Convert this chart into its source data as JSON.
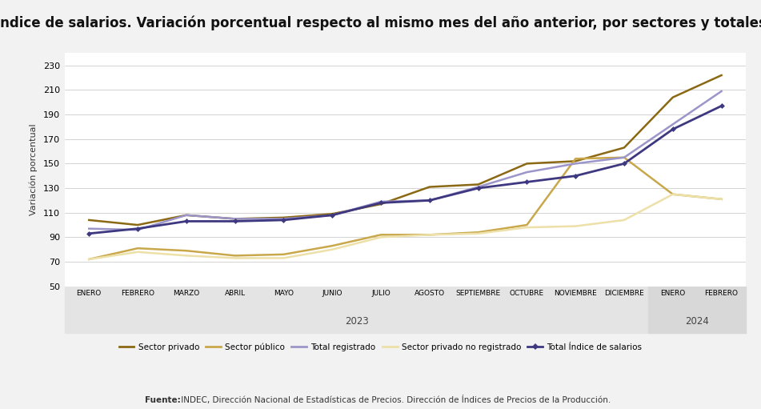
{
  "title": "Índice de salarios. Variación porcentual respecto al mismo mes del año anterior, por sectores y totales",
  "ylabel": "Variación porcentual",
  "xlabel_2023": "2023",
  "xlabel_2024": "2024",
  "source_bold": "Fuente:",
  "source_rest": " INDEC, Dirección Nacional de Estadísticas de Precios. Dirección de Índices de Precios de la Producción.",
  "months": [
    "ENERO",
    "FEBRERO",
    "MARZO",
    "ABRIL",
    "MAYO",
    "JUNIO",
    "JULIO",
    "AGOSTO",
    "SEPTIEMBRE",
    "OCTUBRE",
    "NOVIEMBRE",
    "DICIEMBRE",
    "ENERO",
    "FEBRERO"
  ],
  "sector_privado": [
    104,
    100,
    108,
    105,
    106,
    109,
    117,
    131,
    133,
    150,
    152,
    163,
    204,
    222
  ],
  "sector_publico": [
    72,
    81,
    79,
    75,
    76,
    83,
    92,
    92,
    94,
    100,
    154,
    155,
    125,
    121
  ],
  "total_registrado": [
    97,
    96,
    108,
    105,
    105,
    108,
    119,
    120,
    131,
    143,
    150,
    155,
    182,
    209
  ],
  "sector_priv_no_registrado": [
    72,
    78,
    75,
    73,
    73,
    80,
    90,
    92,
    93,
    98,
    99,
    104,
    125,
    121
  ],
  "total_indice_salarios": [
    93,
    97,
    103,
    103,
    104,
    108,
    118,
    120,
    130,
    135,
    140,
    150,
    178,
    197
  ],
  "color_privado": "#8B6914",
  "color_publico": "#C8A84B",
  "color_total_reg": "#9B95C9",
  "color_no_registrado": "#EDE0A8",
  "color_total_indice": "#3D3880",
  "ylim": [
    50,
    240
  ],
  "yticks": [
    50,
    70,
    90,
    110,
    130,
    150,
    170,
    190,
    210,
    230
  ],
  "bg_color": "#F2F2F2",
  "plot_bg": "#FFFFFF",
  "title_fontsize": 12,
  "axis_label_fontsize": 8,
  "tick_fontsize": 8
}
